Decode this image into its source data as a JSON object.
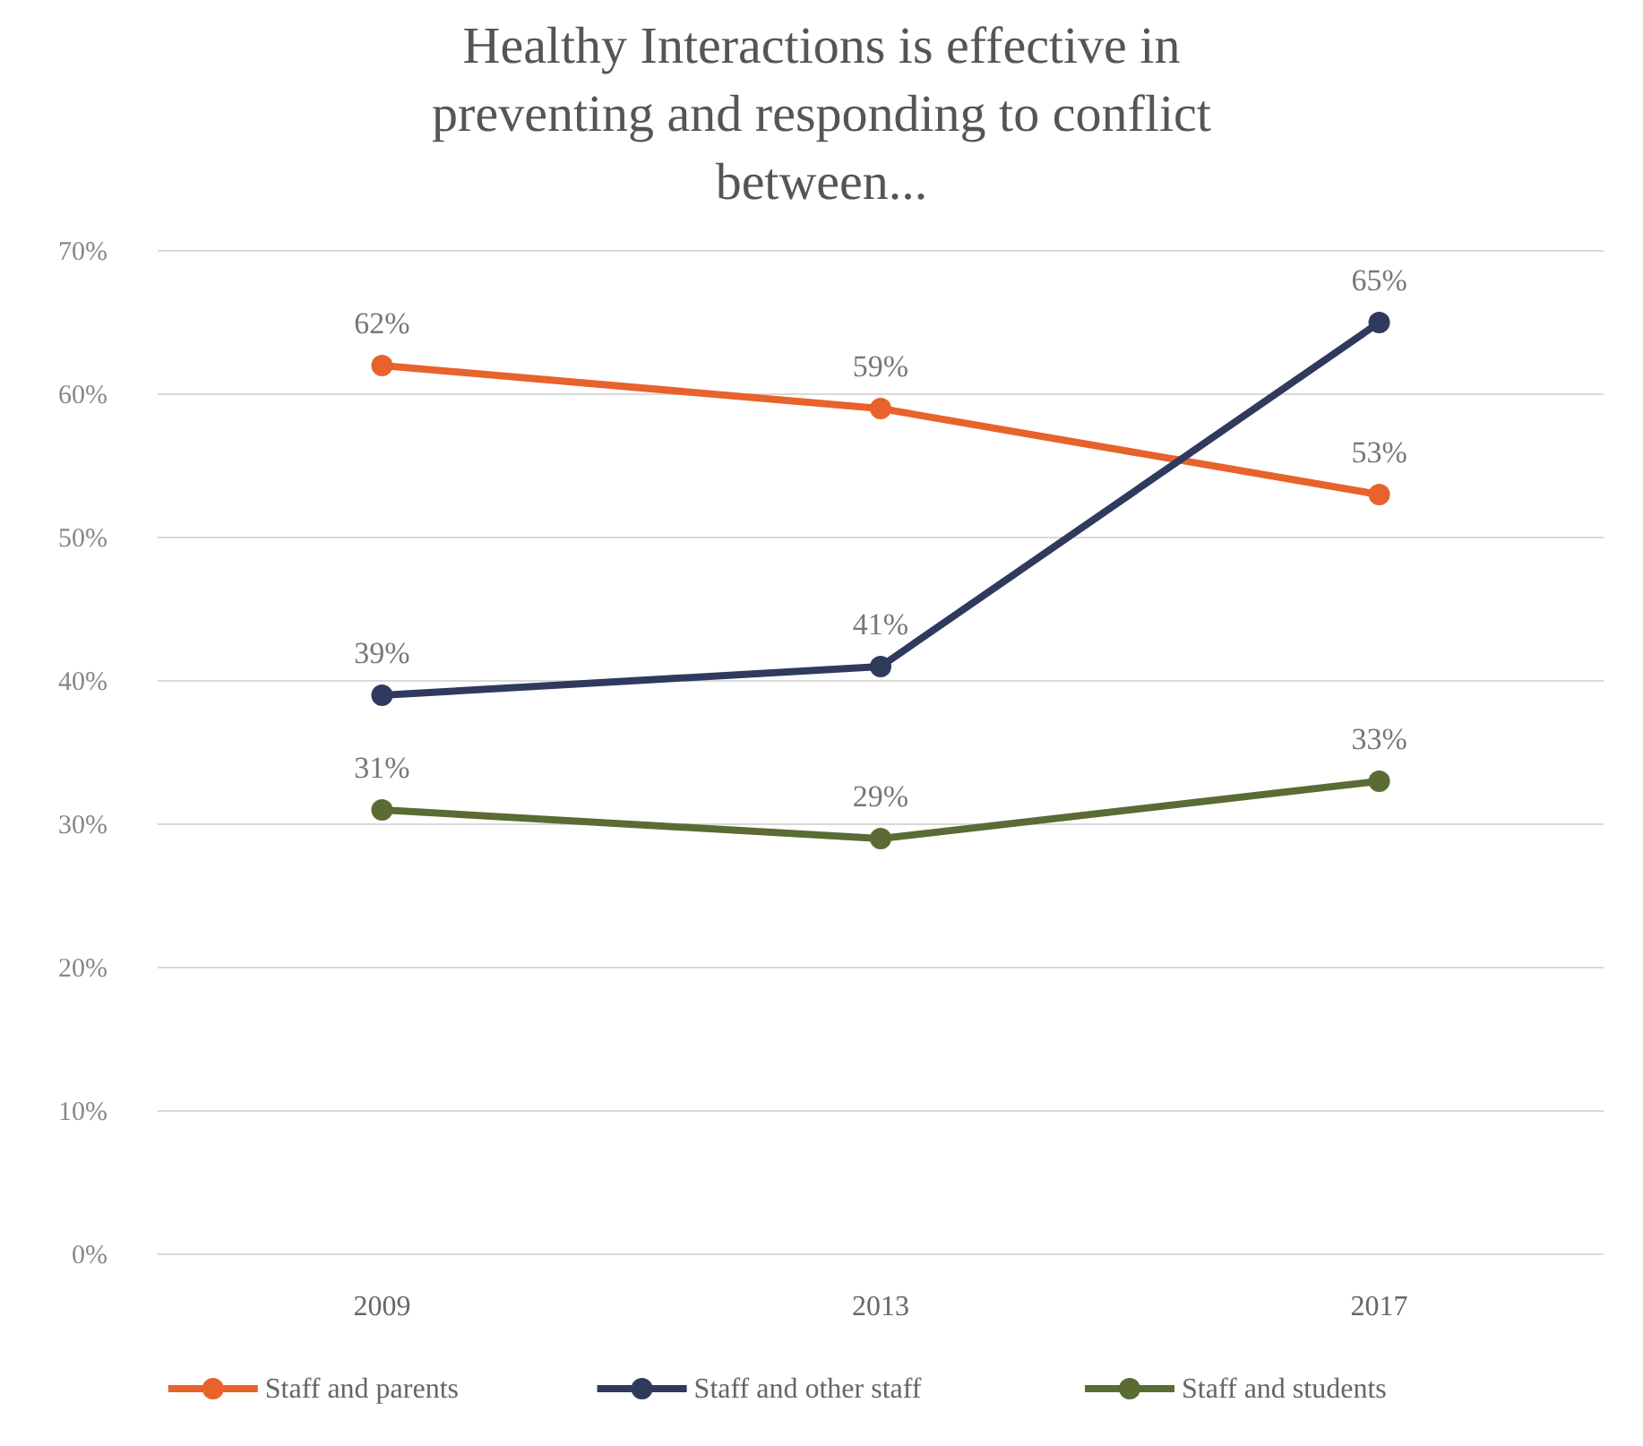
{
  "chart_data": {
    "type": "line",
    "title": "Healthy Interactions is effective in preventing and responding to conflict between...",
    "categories": [
      "2009",
      "2013",
      "2017"
    ],
    "series": [
      {
        "name": "Staff and parents",
        "color": "#e8622c",
        "values": [
          62,
          59,
          53
        ],
        "value_labels": [
          "62%",
          "59%",
          "53%"
        ]
      },
      {
        "name": "Staff and other staff",
        "color": "#2f3a5e",
        "values": [
          39,
          41,
          65
        ],
        "value_labels": [
          "39%",
          "41%",
          "65%"
        ]
      },
      {
        "name": "Staff and students",
        "color": "#5a6b34",
        "values": [
          31,
          29,
          33
        ],
        "value_labels": [
          "31%",
          "29%",
          "33%"
        ]
      }
    ],
    "ylim": [
      0,
      70
    ],
    "yticks": [
      {
        "value": 0,
        "label": "0%"
      },
      {
        "value": 10,
        "label": "10%"
      },
      {
        "value": 20,
        "label": "20%"
      },
      {
        "value": 30,
        "label": "30%"
      },
      {
        "value": 40,
        "label": "40%"
      },
      {
        "value": 50,
        "label": "50%"
      },
      {
        "value": 60,
        "label": "60%"
      },
      {
        "value": 70,
        "label": "70%"
      }
    ],
    "grid": "y",
    "legend": "bottom",
    "marker": "circle",
    "line_style": "solid"
  }
}
